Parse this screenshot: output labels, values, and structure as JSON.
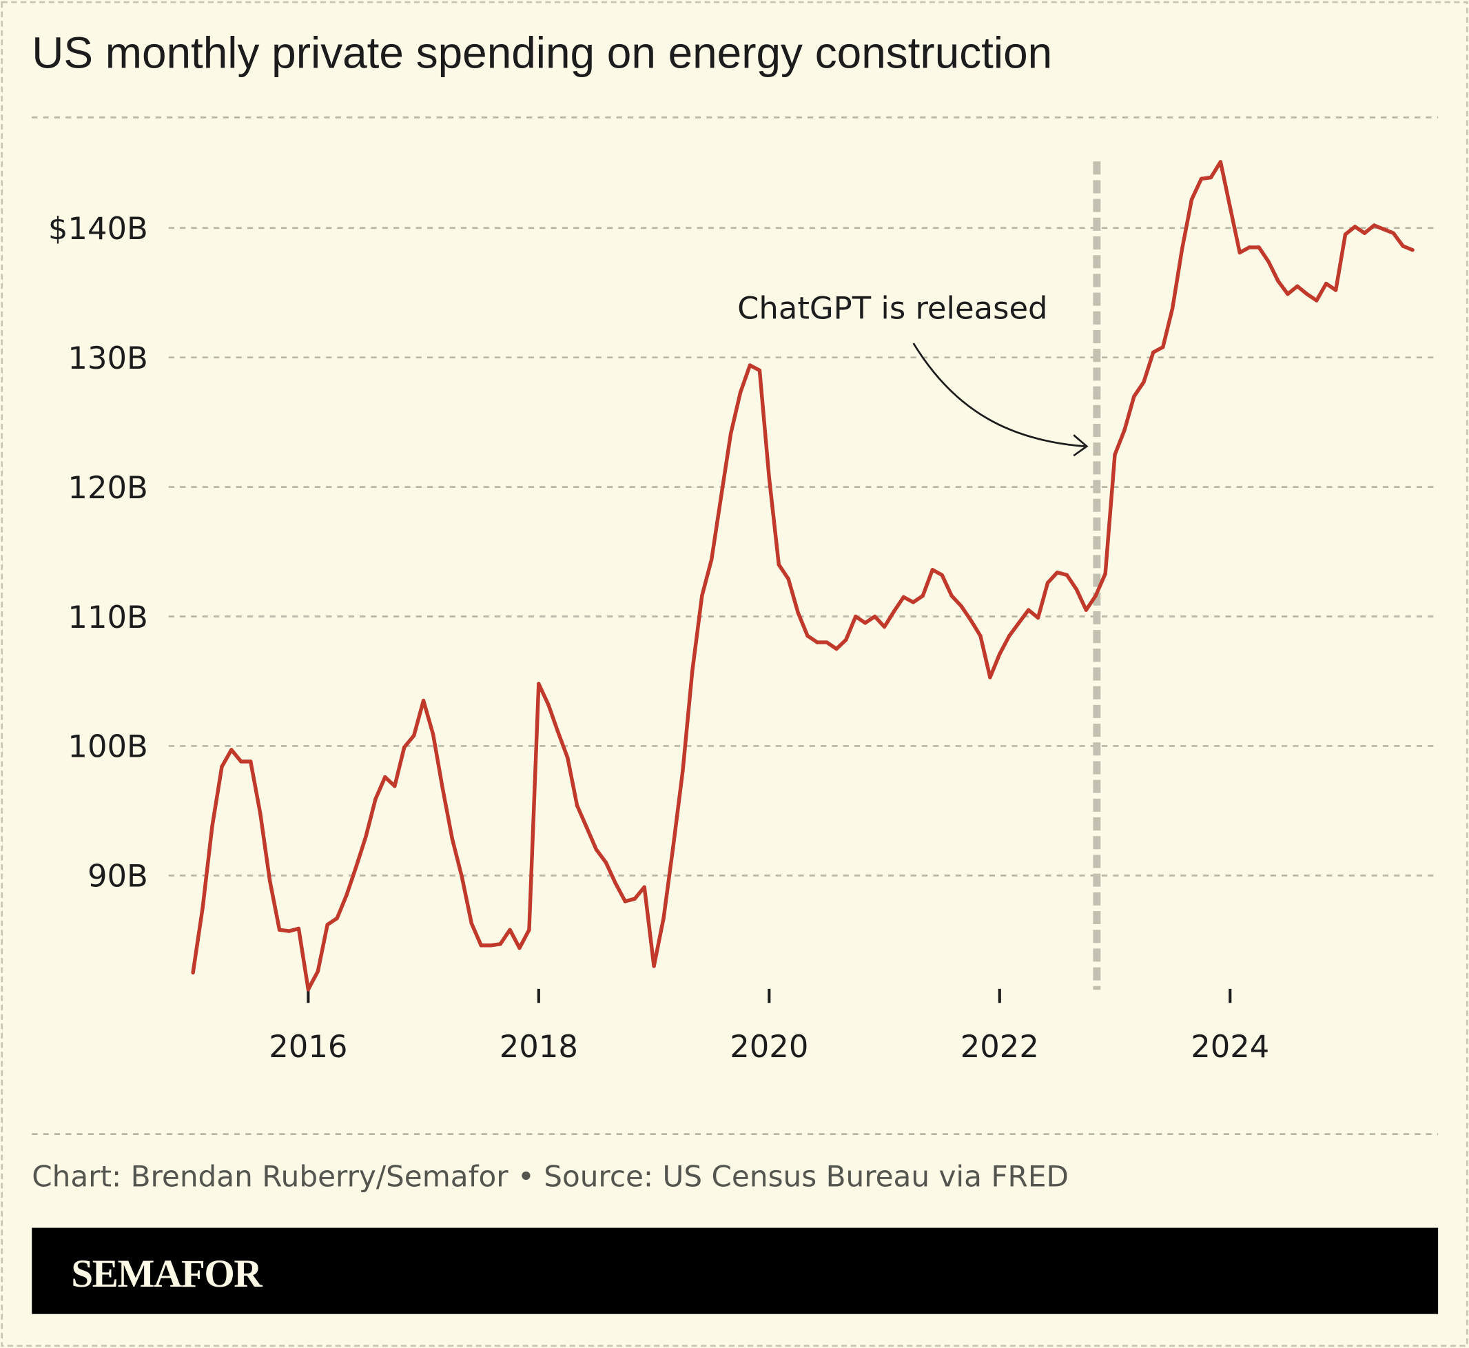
{
  "chart_data": {
    "type": "line",
    "title": "US monthly private spending on energy construction",
    "xlabel": "",
    "ylabel": "",
    "x_start": "2015-01",
    "x_end": "2025-08",
    "x_frequency": "monthly",
    "xlim": [
      "2015-01",
      "2025-08"
    ],
    "ylim": [
      80.7,
      148.5
    ],
    "x_ticks": [
      "2016",
      "2018",
      "2020",
      "2022",
      "2024"
    ],
    "y_ticks": [
      {
        "value": 90,
        "label": "90B"
      },
      {
        "value": 100,
        "label": "100B"
      },
      {
        "value": 110,
        "label": "110B"
      },
      {
        "value": 120,
        "label": "120B"
      },
      {
        "value": 130,
        "label": "130B"
      },
      {
        "value": 140,
        "label": "$140B"
      }
    ],
    "grid": "horizontal dashed",
    "line_color": "#c0392b",
    "series": [
      {
        "values": [
          82.5,
          87.5,
          93.8,
          98.4,
          99.7,
          98.8,
          98.8,
          94.8,
          89.6,
          85.8,
          85.7,
          85.9,
          81.2,
          82.6,
          86.2,
          86.7,
          88.5,
          90.7,
          93.0,
          95.9,
          97.6,
          96.9,
          99.9,
          100.8,
          103.5,
          100.9,
          96.7,
          92.8,
          89.9,
          86.3,
          84.6,
          84.6,
          84.7,
          85.8,
          84.4,
          85.8,
          104.8,
          103.2,
          101.1,
          99.1,
          95.4,
          93.7,
          92.0,
          91.0,
          89.4,
          88.0,
          88.2,
          89.1,
          83.0,
          86.7,
          92.2,
          98.1,
          105.8,
          111.6,
          114.4,
          119.3,
          124.1,
          127.3,
          129.4,
          129.0,
          120.7,
          114.0,
          112.9,
          110.3,
          108.5,
          108.0,
          108.0,
          107.5,
          108.2,
          110.0,
          109.5,
          110.0,
          109.2,
          110.4,
          111.5,
          111.1,
          111.6,
          113.6,
          113.2,
          111.6,
          110.8,
          109.7,
          108.5,
          105.3,
          107.1,
          108.5,
          109.5,
          110.5,
          109.9,
          112.6,
          113.4,
          113.2,
          112.1,
          110.5,
          111.6,
          113.3,
          122.5,
          124.4,
          127.0,
          128.1,
          130.4,
          130.8,
          133.8,
          138.4,
          142.2,
          143.8,
          143.9,
          145.1,
          141.6,
          138.1,
          138.5,
          138.5,
          137.4,
          135.9,
          134.9,
          135.5,
          134.9,
          134.4,
          135.7,
          135.2,
          139.5,
          140.1,
          139.6,
          140.2,
          139.9,
          139.6,
          138.6,
          138.3
        ]
      }
    ],
    "annotations": [
      {
        "text": "ChatGPT is released",
        "x": "2022-11-30",
        "style": "vertical dashed line with curved arrow"
      }
    ],
    "marker_color": "#c2c0b0"
  },
  "footer": {
    "credit": "Chart: Brendan Ruberry/Semafor • Source: US Census Bureau via FRED",
    "logo": "SEMAFOR"
  }
}
